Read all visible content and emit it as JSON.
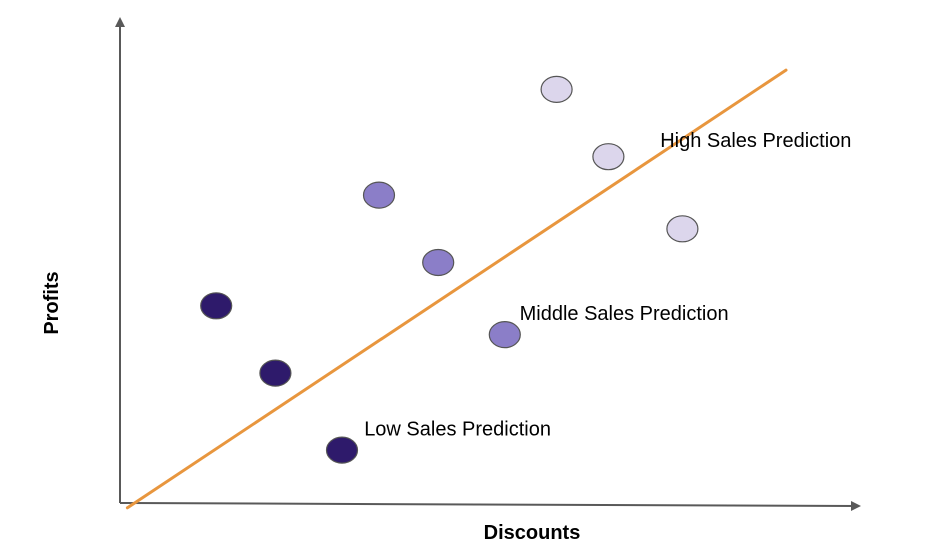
{
  "chart_data": {
    "type": "scatter",
    "title": "",
    "xlabel": "Discounts",
    "ylabel": "Profits",
    "xlim": [
      0,
      100
    ],
    "ylim": [
      0,
      100
    ],
    "grid": false,
    "series": [
      {
        "group": "low",
        "color": "#2e1a6b",
        "points": [
          {
            "x": 13,
            "y": 41
          },
          {
            "x": 21,
            "y": 27
          },
          {
            "x": 30,
            "y": 11
          }
        ]
      },
      {
        "group": "middle",
        "color": "#8b7ec8",
        "points": [
          {
            "x": 35,
            "y": 64
          },
          {
            "x": 43,
            "y": 50
          },
          {
            "x": 52,
            "y": 35
          }
        ]
      },
      {
        "group": "high",
        "color": "#dcd6ec",
        "points": [
          {
            "x": 59,
            "y": 86
          },
          {
            "x": 66,
            "y": 72
          },
          {
            "x": 76,
            "y": 57
          }
        ]
      }
    ],
    "trend_line": {
      "color": "#e8963e",
      "from": {
        "x": 1,
        "y": -1
      },
      "to": {
        "x": 90,
        "y": 90
      }
    },
    "annotations": [
      {
        "text": "High Sales Prediction",
        "x": 73,
        "y": 74
      },
      {
        "text": "Middle Sales Prediction",
        "x": 54,
        "y": 38
      },
      {
        "text": "Low Sales Prediction",
        "x": 33,
        "y": 14
      }
    ]
  }
}
